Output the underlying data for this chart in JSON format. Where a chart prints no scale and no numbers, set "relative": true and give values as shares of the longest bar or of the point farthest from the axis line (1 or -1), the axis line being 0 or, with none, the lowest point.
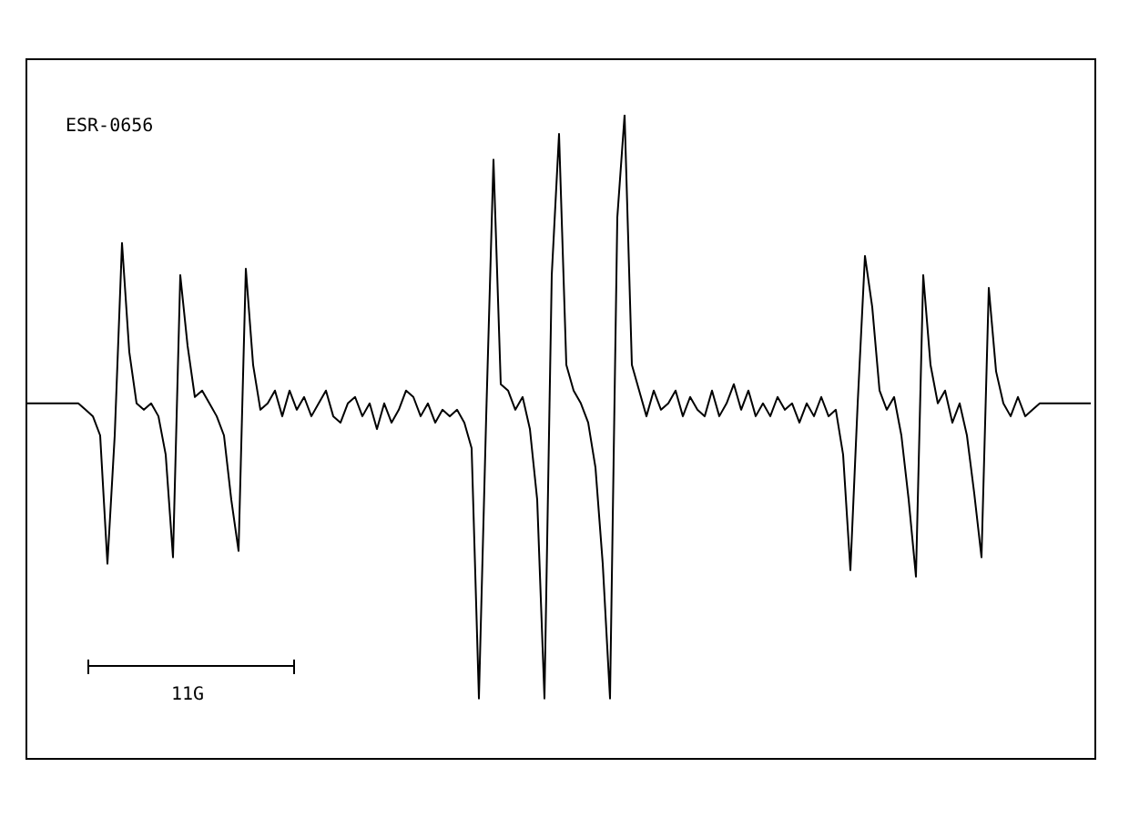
{
  "chart_data": {
    "type": "line",
    "relative": true,
    "annotations": [
      "ESR-0656",
      "11G"
    ],
    "categories": [
      null,
      null,
      null,
      null,
      null,
      null,
      null,
      null,
      null,
      null,
      null,
      null,
      null,
      null,
      null,
      null,
      null,
      null,
      null,
      null,
      null,
      null,
      null,
      null,
      null,
      null,
      null,
      null,
      null,
      null,
      null,
      null,
      null,
      null,
      null,
      null,
      null,
      null,
      null,
      null,
      null,
      null,
      null,
      null,
      null,
      null,
      null,
      null,
      null,
      null,
      null,
      null,
      null,
      null,
      null,
      null,
      null,
      null,
      null,
      null,
      null,
      null,
      null,
      null,
      null,
      null,
      null,
      null,
      null,
      null,
      null,
      null,
      null,
      null,
      null,
      null,
      null,
      null,
      null,
      null,
      null,
      null,
      null,
      null,
      null,
      null,
      null,
      null,
      null,
      null,
      null,
      null,
      null,
      null,
      null,
      null,
      null,
      null,
      null,
      null,
      null,
      null,
      null,
      null,
      null,
      null,
      null,
      null,
      null,
      null,
      null,
      null,
      null,
      null,
      null,
      null,
      null,
      null,
      null,
      null,
      null,
      null,
      null,
      null,
      null,
      null,
      null,
      null,
      null,
      null,
      null,
      null,
      null,
      null,
      null,
      null,
      null,
      null,
      null,
      null,
      null,
      null,
      null,
      null,
      null,
      null,
      null
    ],
    "series": [
      {
        "color": "#000000",
        "values": [
          0.55,
          0.55,
          0.55,
          0.55,
          0.55,
          0.55,
          0.55,
          0.55,
          0.54,
          0.53,
          0.5,
          0.3,
          0.5,
          0.8,
          0.63,
          0.55,
          0.54,
          0.55,
          0.53,
          0.47,
          0.31,
          0.75,
          0.64,
          0.56,
          0.57,
          0.55,
          0.53,
          0.5,
          0.4,
          0.32,
          0.76,
          0.61,
          0.54,
          0.55,
          0.57,
          0.53,
          0.57,
          0.54,
          0.56,
          0.53,
          0.55,
          0.57,
          0.53,
          0.52,
          0.55,
          0.56,
          0.53,
          0.55,
          0.51,
          0.55,
          0.52,
          0.54,
          0.57,
          0.56,
          0.53,
          0.55,
          0.52,
          0.54,
          0.53,
          0.54,
          0.52,
          0.48,
          0.09,
          0.53,
          0.93,
          0.58,
          0.57,
          0.54,
          0.56,
          0.51,
          0.4,
          0.09,
          0.75,
          0.97,
          0.61,
          0.57,
          0.55,
          0.52,
          0.45,
          0.3,
          0.09,
          0.84,
          1,
          0.61,
          0.57,
          0.53,
          0.57,
          0.54,
          0.55,
          0.57,
          0.53,
          0.56,
          0.54,
          0.53,
          0.57,
          0.53,
          0.55,
          0.58,
          0.54,
          0.57,
          0.53,
          0.55,
          0.53,
          0.56,
          0.54,
          0.55,
          0.52,
          0.55,
          0.53,
          0.56,
          0.53,
          0.54,
          0.47,
          0.29,
          0.55,
          0.78,
          0.7,
          0.57,
          0.54,
          0.56,
          0.5,
          0.4,
          0.28,
          0.75,
          0.61,
          0.55,
          0.57,
          0.52,
          0.55,
          0.5,
          0.41,
          0.31,
          0.73,
          0.6,
          0.55,
          0.53,
          0.56,
          0.53,
          0.54,
          0.55,
          0.55,
          0.55,
          0.55,
          0.55,
          0.55,
          0.55,
          0.55
        ]
      }
    ]
  }
}
